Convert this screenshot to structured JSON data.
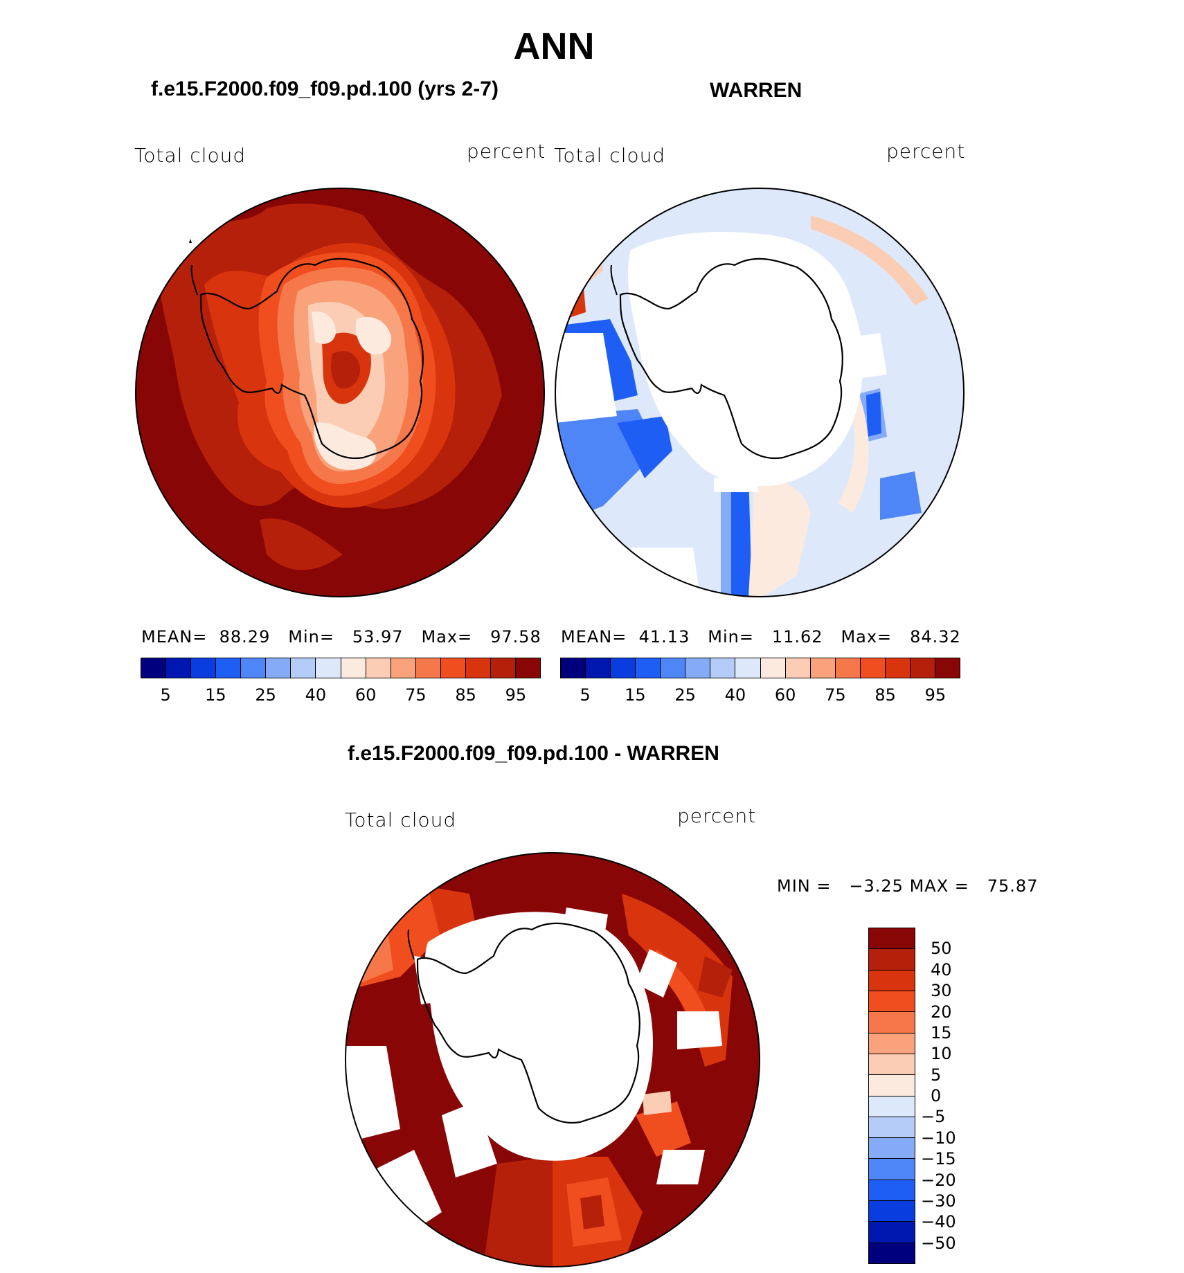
{
  "page_title": "ANN",
  "panels": {
    "left": {
      "case": "f.e15.F2000.f09_f09.pd.100 (yrs 2-7)",
      "variable": "Total cloud",
      "units": "percent",
      "stats": {
        "mean_label": "MEAN=",
        "mean": "88.29",
        "min_label": "Min=",
        "min": "53.97",
        "max_label": "Max=",
        "max": "97.58"
      }
    },
    "right": {
      "case": "WARREN",
      "variable": "Total cloud",
      "units": "percent",
      "stats": {
        "mean_label": "MEAN=",
        "mean": "41.13",
        "min_label": "Min=",
        "min": "11.62",
        "max_label": "Max=",
        "max": "84.32"
      }
    },
    "diff": {
      "case": "f.e15.F2000.f09_f09.pd.100 - WARREN",
      "variable": "Total cloud",
      "units": "percent",
      "stats": {
        "min_label": "MIN =",
        "min": "−3.25",
        "max_label": "MAX =",
        "max": "75.87"
      }
    }
  },
  "colorbar_abs": {
    "colors": [
      "#00007f",
      "#0018b0",
      "#0a3de0",
      "#1f5ef5",
      "#4f86f7",
      "#85aaf7",
      "#b5ccf8",
      "#dde9fb",
      "#fdeadf",
      "#fbcdb5",
      "#f9a27b",
      "#f6784a",
      "#f04e1f",
      "#d8340e",
      "#b4200a",
      "#880606"
    ],
    "tick_labels": [
      "5",
      "15",
      "25",
      "40",
      "60",
      "75",
      "85",
      "95"
    ]
  },
  "colorbar_diff": {
    "colors": [
      "#880606",
      "#b4200a",
      "#d8340e",
      "#f04e1f",
      "#f6784a",
      "#f9a27b",
      "#fbcdb5",
      "#fdeadf",
      "#dde9fb",
      "#b5ccf8",
      "#85aaf7",
      "#4f86f7",
      "#1f5ef5",
      "#0a3de0",
      "#0018b0",
      "#00007f"
    ],
    "tick_labels": [
      "50",
      "40",
      "30",
      "20",
      "15",
      "10",
      "5",
      "0",
      "−5",
      "−10",
      "−15",
      "−20",
      "−30",
      "−40",
      "−50"
    ]
  }
}
